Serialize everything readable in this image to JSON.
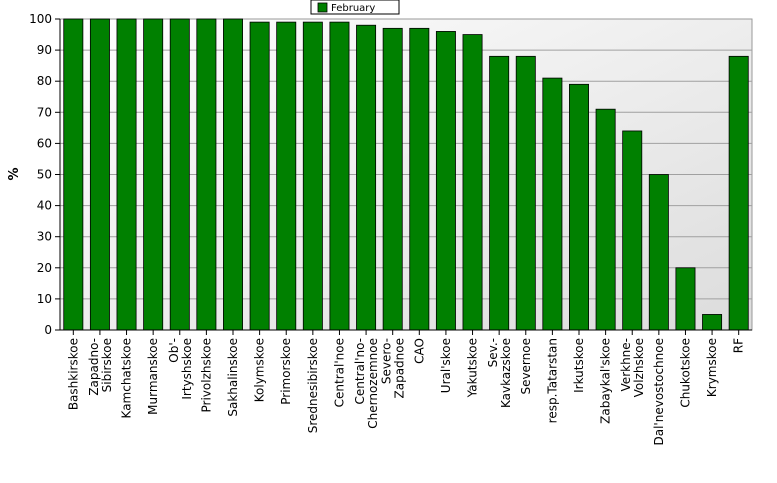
{
  "chart_data": {
    "type": "bar",
    "title": "",
    "xlabel": "",
    "ylabel": "%",
    "ylim": [
      0,
      100
    ],
    "yticks": [
      0,
      10,
      20,
      30,
      40,
      50,
      60,
      70,
      80,
      90,
      100
    ],
    "grid": true,
    "legend_position": "top-center",
    "categories": [
      "Bashkirskoe",
      "Zapadno-Sibirskoe",
      "Kamchatskoe",
      "Murmanskoe",
      "Ob'-Irtyshskoe",
      "Privolzhskoe",
      "Sakhalinskoe",
      "Kolymskoe",
      "Primorskoe",
      "Srednesibirskoe",
      "Central'noe",
      "Central'no-Chernozemnoe",
      "Severo-Zapadnoe",
      "CAO",
      "Ural'skoe",
      "Yakutskoe",
      "Sev.-Kavkazskoe",
      "Severnoe",
      "resp.Tatarstan",
      "Irkutskoe",
      "Zabaykal'skoe",
      "Verkhne-Volzhskoe",
      "Dal'nevostochnoe",
      "Chukotskoe",
      "Krymskoe",
      "RF"
    ],
    "series": [
      {
        "name": "February",
        "color": "#008000",
        "values": [
          100,
          100,
          100,
          100,
          100,
          100,
          100,
          99,
          99,
          99,
          99,
          98,
          97,
          97,
          96,
          95,
          88,
          88,
          81,
          79,
          71,
          64,
          50,
          20,
          5,
          88
        ]
      }
    ]
  }
}
